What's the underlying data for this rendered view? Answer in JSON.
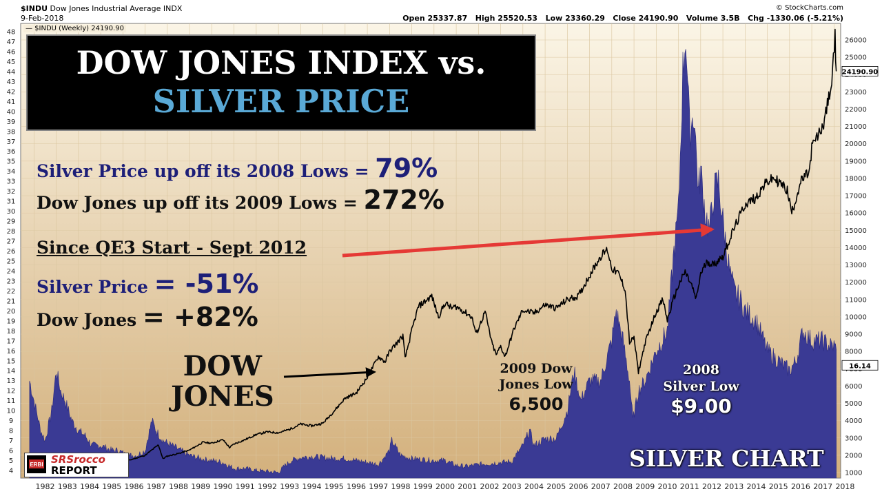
{
  "header": {
    "symbol": "$INDU",
    "name": "Dow Jones Industrial Average",
    "exchange": "INDX",
    "source": "© StockCharts.com",
    "date": "9-Feb-2018",
    "open": "Open 25337.87",
    "high": "High 25520.53",
    "low": "Low 23360.29",
    "close": "Close 24190.90",
    "volume": "Volume 3.5B",
    "chg": "Chg -1330.06 (-5.21%)",
    "legend": "— $INDU (Weekly) 24190.90"
  },
  "title": {
    "line1": "DOW JONES INDEX vs.",
    "line2": "SILVER PRICE",
    "line2_color": "#5aa9d6"
  },
  "stats": {
    "silver_up_label": "Silver Price up off its 2008 Lows =",
    "silver_up_value": "79%",
    "dow_up_label": "Dow Jones up off its 2009 Lows =",
    "dow_up_value": "272%",
    "qe3_heading": "Since QE3 Start - Sept 2012",
    "silver_qe3_label": "Silver Price",
    "silver_qe3_value": "= -51%",
    "dow_qe3_label": "Dow Jones",
    "dow_qe3_value": "= +82%"
  },
  "annotations": {
    "dow_label_1": "DOW",
    "dow_label_2": "JONES",
    "dow_low_1": "2009 Dow",
    "dow_low_2": "Jones Low",
    "dow_low_3": "6,500",
    "silver_low_1": "2008",
    "silver_low_2": "Silver Low",
    "silver_low_3": "$9.00",
    "silver_chart": "SILVER CHART"
  },
  "logo": {
    "badge": "ERBI",
    "line1": "SRSrocco",
    "line2": "REPORT"
  },
  "colors": {
    "bg_top": "#f8f0dc",
    "bg_bottom": "#d6b786",
    "silver_fill": "#3a3a94",
    "dow_line": "#000000",
    "arrow_red": "#e53935",
    "navy_text": "#1d1f78"
  },
  "chart_data": {
    "type": "line",
    "x_tick_labels": [
      "1982",
      "1983",
      "1984",
      "1985",
      "1986",
      "1987",
      "1988",
      "1989",
      "1990",
      "1991",
      "1992",
      "1993",
      "1994",
      "1995",
      "1996",
      "1997",
      "1998",
      "1999",
      "2000",
      "2001",
      "2002",
      "2003",
      "2004",
      "2005",
      "2006",
      "2007",
      "2008",
      "2009",
      "2010",
      "2011",
      "2012",
      "2013",
      "2014",
      "2015",
      "2016",
      "2017",
      "2018"
    ],
    "left_axis": {
      "min": 4,
      "max": 48,
      "ticks": [
        4,
        5,
        6,
        7,
        8,
        9,
        10,
        11,
        12,
        13,
        14,
        15,
        16,
        17,
        18,
        19,
        20,
        21,
        22,
        23,
        24,
        25,
        26,
        27,
        28,
        29,
        30,
        31,
        32,
        33,
        34,
        35,
        36,
        37,
        38,
        39,
        40,
        41,
        42,
        43,
        44,
        45,
        46,
        47,
        48
      ]
    },
    "right_axis": {
      "min": 1000,
      "max": 26000,
      "ticks": [
        1000,
        2000,
        3000,
        4000,
        5000,
        6000,
        7000,
        8000,
        9000,
        10000,
        11000,
        12000,
        13000,
        14000,
        15000,
        16000,
        17000,
        18000,
        19000,
        20000,
        21000,
        22000,
        23000,
        24000,
        25000,
        26000
      ]
    },
    "right_last_value": "24190.90",
    "left_last_value": "16.14",
    "series": [
      {
        "name": "$INDU (Weekly)",
        "axis": "right",
        "kind": "line",
        "x": [
          1985.9,
          1986.5,
          1987.0,
          1987.6,
          1987.8,
          1988.0,
          1988.5,
          1989.0,
          1989.6,
          1990.0,
          1990.5,
          1990.8,
          1991.0,
          1991.5,
          1992.0,
          1992.5,
          1993.0,
          1993.5,
          1994.0,
          1994.5,
          1995.0,
          1995.5,
          1996.0,
          1996.5,
          1997.0,
          1997.5,
          1997.8,
          1998.0,
          1998.6,
          1998.7,
          1999.0,
          1999.3,
          1999.9,
          2000.2,
          2000.5,
          2000.8,
          2001.0,
          2001.7,
          2001.9,
          2002.3,
          2002.6,
          2002.8,
          2003.0,
          2003.2,
          2003.6,
          2004.0,
          2004.5,
          2005.0,
          2005.5,
          2006.0,
          2006.5,
          2007.0,
          2007.5,
          2007.8,
          2008.0,
          2008.3,
          2008.6,
          2008.8,
          2009.0,
          2009.2,
          2009.5,
          2010.0,
          2010.3,
          2010.5,
          2010.8,
          2011.0,
          2011.3,
          2011.6,
          2011.8,
          2012.0,
          2012.3,
          2012.6,
          2012.8,
          2013.0,
          2013.5,
          2014.0,
          2014.5,
          2014.8,
          2015.0,
          2015.3,
          2015.6,
          2015.9,
          2016.1,
          2016.5,
          2016.9,
          2017.0,
          2017.5,
          2017.9,
          2018.05,
          2018.1
        ],
        "y": [
          1550,
          1800,
          2000,
          2600,
          1800,
          1950,
          2100,
          2300,
          2750,
          2700,
          2900,
          2450,
          2650,
          2900,
          3200,
          3350,
          3300,
          3500,
          3800,
          3700,
          3850,
          4550,
          5300,
          5600,
          6500,
          7700,
          7400,
          8000,
          8900,
          7600,
          9200,
          10600,
          11200,
          10000,
          10800,
          10500,
          10600,
          10000,
          9000,
          10300,
          8500,
          7800,
          8300,
          7700,
          9300,
          10400,
          10200,
          10700,
          10500,
          11000,
          11200,
          12400,
          13500,
          13900,
          12800,
          12500,
          11600,
          8500,
          8800,
          6800,
          8500,
          10300,
          11000,
          9800,
          11100,
          11800,
          12600,
          11800,
          11000,
          12500,
          13200,
          13000,
          13300,
          13500,
          15100,
          16500,
          16900,
          17500,
          17800,
          18000,
          17700,
          17300,
          16000,
          17800,
          18400,
          19800,
          21000,
          23500,
          26200,
          24190
        ]
      },
      {
        "name": "Silver",
        "axis": "left",
        "kind": "area",
        "x": [
          1981.8,
          1982.0,
          1982.3,
          1982.5,
          1982.8,
          1983.0,
          1983.2,
          1983.4,
          1983.7,
          1984.0,
          1984.3,
          1984.6,
          1985.0,
          1985.5,
          1985.8,
          1986.2,
          1986.6,
          1987.0,
          1987.3,
          1987.5,
          1987.8,
          1988.2,
          1988.6,
          1989.0,
          1989.5,
          1990.0,
          1990.5,
          1991.0,
          1991.5,
          1992.0,
          1992.5,
          1993.0,
          1993.3,
          1993.6,
          1994.0,
          1994.5,
          1995.0,
          1995.5,
          1996.0,
          1996.5,
          1997.0,
          1997.5,
          1998.0,
          1998.1,
          1998.5,
          1999.0,
          1999.5,
          2000.0,
          2000.5,
          2001.0,
          2001.5,
          2002.0,
          2002.5,
          2003.0,
          2003.5,
          2004.0,
          2004.3,
          2004.5,
          2005.0,
          2005.5,
          2006.0,
          2006.3,
          2006.6,
          2007.0,
          2007.5,
          2008.0,
          2008.2,
          2008.5,
          2008.8,
          2008.95,
          2009.2,
          2009.5,
          2010.0,
          2010.5,
          2010.8,
          2011.0,
          2011.2,
          2011.33,
          2011.5,
          2011.7,
          2011.9,
          2012.0,
          2012.2,
          2012.4,
          2012.6,
          2012.8,
          2013.0,
          2013.3,
          2013.5,
          2013.8,
          2014.0,
          2014.5,
          2015.0,
          2015.5,
          2016.0,
          2016.3,
          2016.6,
          2017.0,
          2017.5,
          2017.8,
          2018.0,
          2018.1
        ],
        "y": [
          13,
          11,
          8,
          7,
          10,
          14,
          12,
          11,
          9,
          8,
          7.5,
          6.5,
          6.5,
          6,
          6,
          5.5,
          5.5,
          6,
          9,
          8,
          7,
          6.5,
          6,
          5.5,
          5.2,
          5,
          4.8,
          4.2,
          4.2,
          4,
          3.9,
          3.8,
          4.5,
          5,
          5.3,
          5.4,
          5.3,
          5.2,
          5.2,
          5,
          4.8,
          4.6,
          6,
          7,
          5.5,
          5.2,
          5.1,
          5,
          5,
          4.5,
          4.4,
          4.6,
          4.7,
          4.8,
          4.9,
          6.5,
          8,
          6.5,
          7.2,
          7.2,
          10,
          14,
          11,
          13,
          13,
          17,
          20,
          17,
          13,
          9,
          12,
          13,
          16,
          18,
          26,
          30,
          44,
          48,
          38,
          40,
          32,
          34,
          30,
          28,
          32,
          33,
          29,
          24,
          22,
          21,
          20,
          19,
          16,
          15,
          14,
          15,
          18,
          17,
          17,
          16.5,
          16.5,
          16.14
        ]
      }
    ]
  }
}
